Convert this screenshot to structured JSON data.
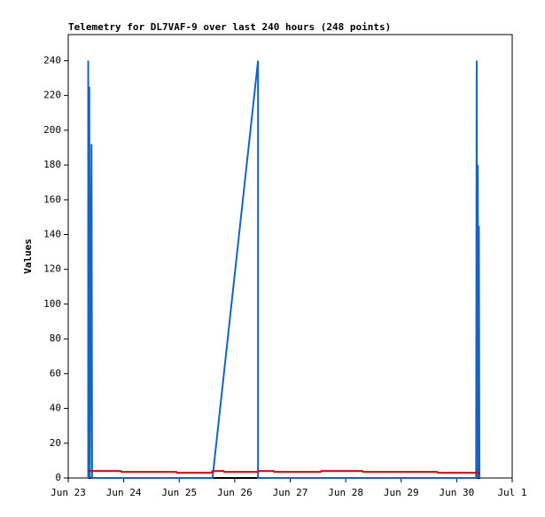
{
  "chart_data": {
    "type": "line",
    "title": "Telemetry for DL7VAF-9 over last 240 hours (248 points)",
    "ylabel": "Values",
    "xlim": [
      0,
      8
    ],
    "ylim": [
      0,
      255
    ],
    "xticks": [
      {
        "value": 0,
        "label": "Jun 23"
      },
      {
        "value": 1,
        "label": "Jun 24"
      },
      {
        "value": 2,
        "label": "Jun 25"
      },
      {
        "value": 3,
        "label": "Jun 26"
      },
      {
        "value": 4,
        "label": "Jun 27"
      },
      {
        "value": 5,
        "label": "Jun 28"
      },
      {
        "value": 6,
        "label": "Jun 29"
      },
      {
        "value": 7,
        "label": "Jun 30"
      },
      {
        "value": 8,
        "label": "Jul 1"
      }
    ],
    "yticks": [
      0,
      20,
      40,
      60,
      80,
      100,
      120,
      140,
      160,
      180,
      200,
      220,
      240
    ],
    "series": [
      {
        "color": "#000000",
        "x": [
          0.36,
          7.42
        ],
        "values": [
          0,
          0
        ]
      },
      {
        "color": "#1565c0",
        "x": [
          0.36,
          0.36,
          0.37,
          0.38,
          0.39,
          0.42,
          0.43,
          2.6,
          3.42,
          3.42,
          7.35,
          7.36,
          7.37,
          7.38,
          7.39,
          7.4,
          7.41
        ],
        "values": [
          0,
          240,
          0,
          225,
          0,
          192,
          0,
          0,
          240,
          0,
          0,
          240,
          0,
          180,
          0,
          145,
          0
        ]
      },
      {
        "color": "#e00000",
        "x": [
          0.36,
          0.95,
          0.96,
          1.95,
          1.96,
          2.58,
          2.6,
          2.8,
          2.81,
          3.42,
          3.43,
          3.7,
          3.71,
          4.55,
          4.56,
          5.3,
          5.31,
          6.65,
          6.66,
          7.42
        ],
        "values": [
          4,
          4,
          3.5,
          3.5,
          3,
          3,
          4,
          4,
          3.5,
          3.5,
          4,
          4,
          3.5,
          3.5,
          4,
          4,
          3.5,
          3.5,
          3,
          3
        ]
      }
    ]
  }
}
